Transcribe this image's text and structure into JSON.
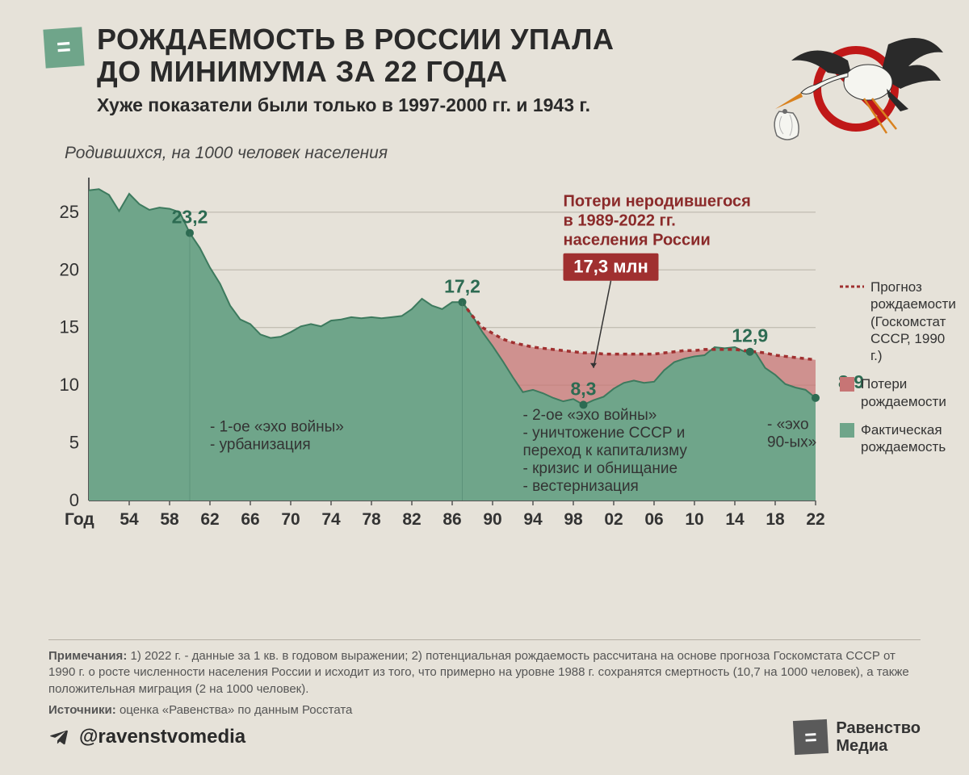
{
  "title_line1": "РОЖДАЕМОСТЬ В РОССИИ УПАЛА",
  "title_line2": "ДО МИНИМУМА ЗА 22 ГОДА",
  "subtitle": "Хуже показатели были только в 1997-2000 гг. и 1943 г.",
  "ylabel": "Родившихся, на 1000 человек населения",
  "chart": {
    "type": "area",
    "x_start": 1950,
    "x_end": 2022,
    "x_ticks": [
      "54",
      "58",
      "62",
      "66",
      "70",
      "74",
      "78",
      "82",
      "86",
      "90",
      "94",
      "98",
      "02",
      "06",
      "10",
      "14",
      "18",
      "22"
    ],
    "x_axis_label": "Год",
    "y_ticks": [
      0,
      5,
      10,
      15,
      20,
      25
    ],
    "ylim": [
      0,
      28
    ],
    "actual_color": "#6fa58a",
    "forecast_color": "#a03030",
    "loss_fill": "#c77575",
    "grid_color": "#b8b3a8",
    "bg": "#e6e2d9",
    "label_color_actual": "#2d6b52",
    "label_color_loss": "#8b2a2a",
    "actual_series": [
      [
        1950,
        26.9
      ],
      [
        1951,
        27.0
      ],
      [
        1952,
        26.5
      ],
      [
        1953,
        25.1
      ],
      [
        1954,
        26.6
      ],
      [
        1955,
        25.7
      ],
      [
        1956,
        25.2
      ],
      [
        1957,
        25.4
      ],
      [
        1958,
        25.3
      ],
      [
        1959,
        25.0
      ],
      [
        1960,
        23.2
      ],
      [
        1961,
        21.9
      ],
      [
        1962,
        20.2
      ],
      [
        1963,
        18.8
      ],
      [
        1964,
        16.9
      ],
      [
        1965,
        15.7
      ],
      [
        1966,
        15.3
      ],
      [
        1967,
        14.4
      ],
      [
        1968,
        14.1
      ],
      [
        1969,
        14.2
      ],
      [
        1970,
        14.6
      ],
      [
        1971,
        15.1
      ],
      [
        1972,
        15.3
      ],
      [
        1973,
        15.1
      ],
      [
        1974,
        15.6
      ],
      [
        1975,
        15.7
      ],
      [
        1976,
        15.9
      ],
      [
        1977,
        15.8
      ],
      [
        1978,
        15.9
      ],
      [
        1979,
        15.8
      ],
      [
        1980,
        15.9
      ],
      [
        1981,
        16.0
      ],
      [
        1982,
        16.6
      ],
      [
        1983,
        17.5
      ],
      [
        1984,
        16.9
      ],
      [
        1985,
        16.6
      ],
      [
        1986,
        17.2
      ],
      [
        1987,
        17.2
      ],
      [
        1988,
        16.0
      ],
      [
        1989,
        14.6
      ],
      [
        1990,
        13.4
      ],
      [
        1991,
        12.1
      ],
      [
        1992,
        10.7
      ],
      [
        1993,
        9.4
      ],
      [
        1994,
        9.6
      ],
      [
        1995,
        9.3
      ],
      [
        1996,
        8.9
      ],
      [
        1997,
        8.6
      ],
      [
        1998,
        8.8
      ],
      [
        1999,
        8.3
      ],
      [
        2000,
        8.7
      ],
      [
        2001,
        9.0
      ],
      [
        2002,
        9.7
      ],
      [
        2003,
        10.2
      ],
      [
        2004,
        10.4
      ],
      [
        2005,
        10.2
      ],
      [
        2006,
        10.3
      ],
      [
        2007,
        11.3
      ],
      [
        2008,
        12.0
      ],
      [
        2009,
        12.3
      ],
      [
        2010,
        12.5
      ],
      [
        2011,
        12.6
      ],
      [
        2012,
        13.3
      ],
      [
        2013,
        13.2
      ],
      [
        2014,
        13.3
      ],
      [
        2015,
        12.9
      ],
      [
        2016,
        12.9
      ],
      [
        2017,
        11.5
      ],
      [
        2018,
        10.9
      ],
      [
        2019,
        10.1
      ],
      [
        2020,
        9.8
      ],
      [
        2021,
        9.6
      ],
      [
        2022,
        8.9
      ]
    ],
    "forecast_series": [
      [
        1987,
        17.2
      ],
      [
        1988,
        16.0
      ],
      [
        1989,
        15.0
      ],
      [
        1990,
        14.5
      ],
      [
        1991,
        14.0
      ],
      [
        1992,
        13.7
      ],
      [
        1993,
        13.5
      ],
      [
        1994,
        13.3
      ],
      [
        1995,
        13.2
      ],
      [
        1996,
        13.1
      ],
      [
        1997,
        13.0
      ],
      [
        1998,
        12.9
      ],
      [
        1999,
        12.8
      ],
      [
        2000,
        12.8
      ],
      [
        2001,
        12.7
      ],
      [
        2002,
        12.7
      ],
      [
        2003,
        12.7
      ],
      [
        2004,
        12.7
      ],
      [
        2005,
        12.7
      ],
      [
        2006,
        12.7
      ],
      [
        2007,
        12.8
      ],
      [
        2008,
        12.9
      ],
      [
        2009,
        13.0
      ],
      [
        2010,
        13.0
      ],
      [
        2011,
        13.1
      ],
      [
        2012,
        13.1
      ],
      [
        2013,
        13.1
      ],
      [
        2014,
        13.1
      ],
      [
        2015,
        13.0
      ],
      [
        2016,
        12.9
      ],
      [
        2017,
        12.8
      ],
      [
        2018,
        12.6
      ],
      [
        2019,
        12.5
      ],
      [
        2020,
        12.4
      ],
      [
        2021,
        12.3
      ],
      [
        2022,
        12.2
      ]
    ],
    "callouts": [
      {
        "year": 1960,
        "value": 23.2,
        "text": "23,2",
        "color": "#2d6b52",
        "dy": -12
      },
      {
        "year": 1987,
        "value": 17.2,
        "text": "17,2",
        "color": "#2d6b52",
        "dy": -12
      },
      {
        "year": 1999,
        "value": 8.3,
        "text": "8,3",
        "color": "#2d6b52",
        "dy": -12
      },
      {
        "year": 2015.5,
        "value": 12.9,
        "text": "12,9",
        "color": "#2d6b52",
        "dy": -12
      },
      {
        "year": 2022,
        "value": 8.9,
        "text": "8,9",
        "color": "#2d6b52",
        "dy": -12,
        "anchor": "end",
        "dx": 60
      }
    ]
  },
  "loss": {
    "heading_l1": "Потери неродившегося",
    "heading_l2": "в 1989-2022 гг.",
    "heading_l3": "населения России",
    "value": "17,3 млн"
  },
  "annotations": {
    "first_echo": [
      "- 1-ое «эхо войны»",
      "- урбанизация"
    ],
    "second_echo": [
      "- 2-ое «эхо войны»",
      "- уничтожение СССР и",
      "  переход к капитализму",
      "- кризис и обнищание",
      "- вестернизация"
    ],
    "third_echo": [
      "- «эхо",
      "90-ых»"
    ]
  },
  "legend": {
    "forecast": "Прогноз рождаемости (Госкомстат СССР, 1990 г.)",
    "loss": "Потери рождаемости",
    "actual": "Фактическая рождаемость"
  },
  "footnote_label": "Примечания:",
  "footnote_text": " 1) 2022 г. - данные за 1 кв. в годовом выражении; 2) потенциальная рождаемость рассчитана на основе прогноза Госкомстата СССР от 1990 г. о росте численности населения России и исходит из того, что примерно на уровне 1988 г. сохранятся смертность (10,7 на 1000 человек), а также положительная миграция (2 на 1000 человек).",
  "source_label": "Источники:",
  "source_text": " оценка «Равенства» по данным Росстата",
  "handle": "@ravenstvomedia",
  "brand_l1": "Равенство",
  "brand_l2": "Медиа"
}
